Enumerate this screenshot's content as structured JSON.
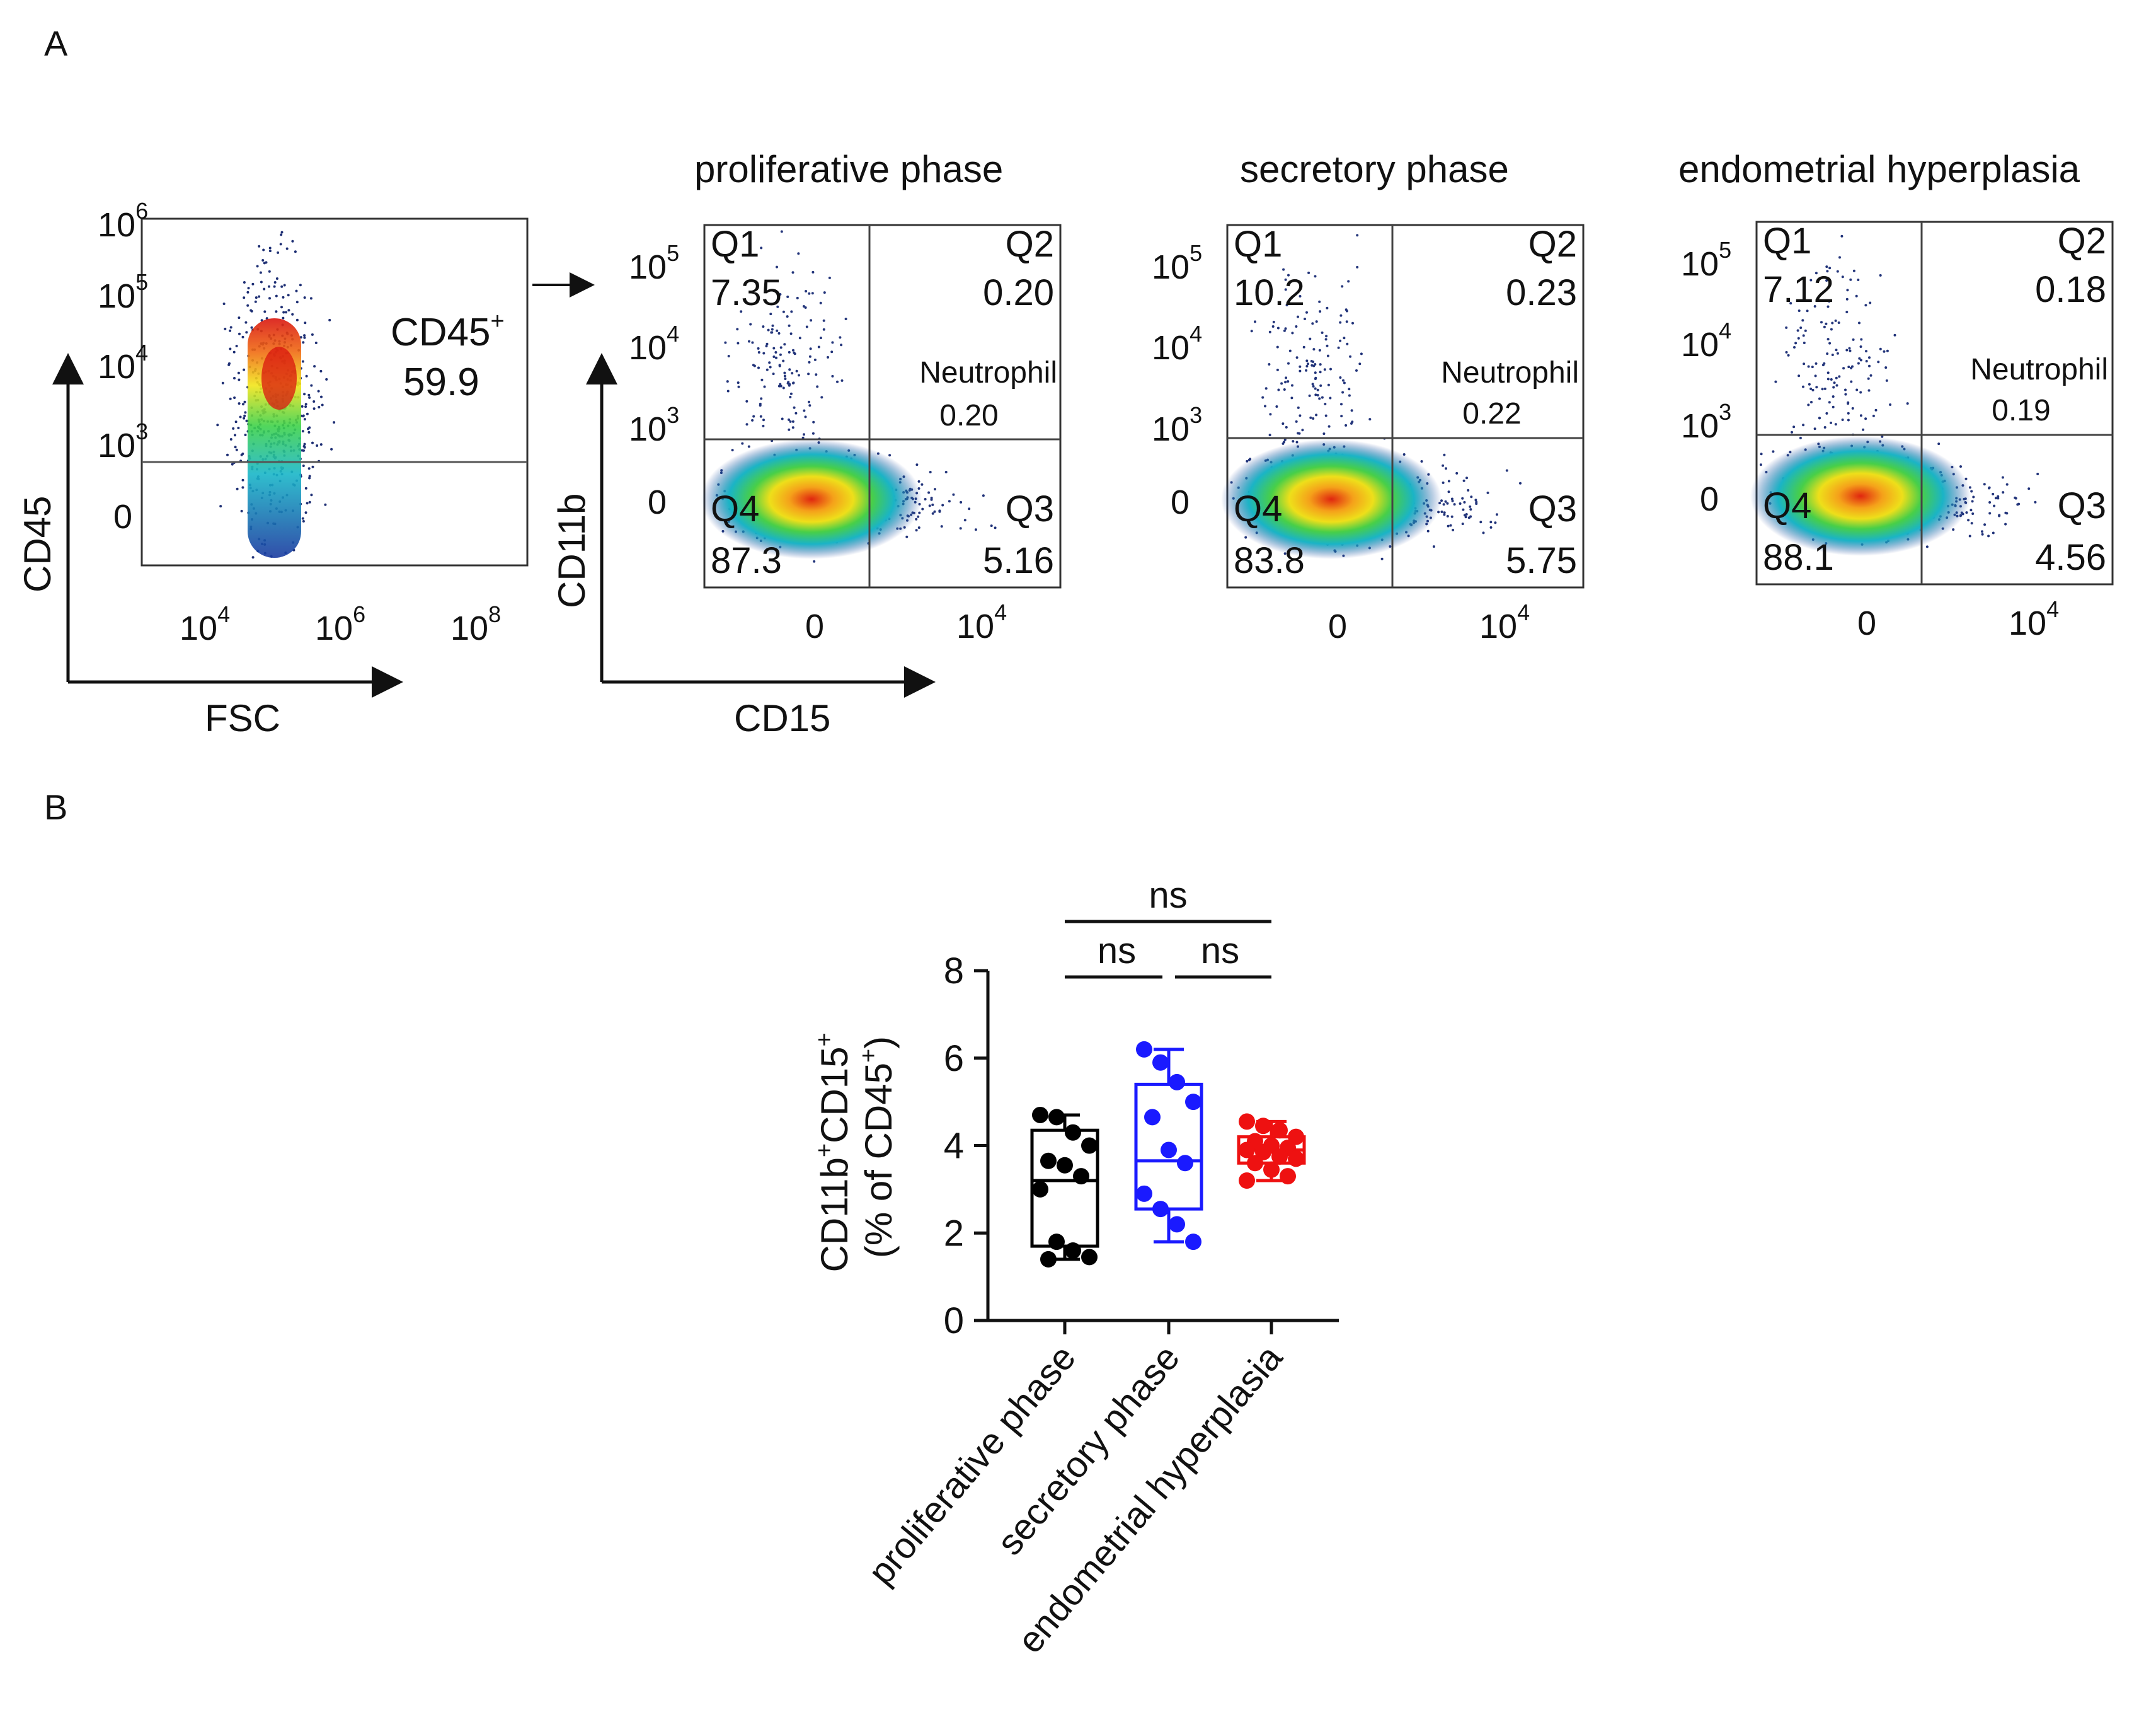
{
  "panel_a": {
    "label": "A",
    "gate_plot": {
      "gate_name": "CD45",
      "gate_value": "59.9",
      "x_axis_label": "FSC",
      "y_axis_label": "CD45",
      "x_ticks": [
        "4",
        "6",
        "8"
      ],
      "y_ticks": [
        "0",
        "3",
        "4",
        "5",
        "6"
      ]
    },
    "quadrant_plots": [
      {
        "title": "proliferative phase",
        "q1": "7.35",
        "q2": "0.20",
        "q3": "5.16",
        "q4": "87.3",
        "neutrophil": "0.20"
      },
      {
        "title": "secretory phase",
        "q1": "10.2",
        "q2": "0.23",
        "q3": "5.75",
        "q4": "83.8",
        "neutrophil": "0.22"
      },
      {
        "title": "endometrial hyperplasia",
        "q1": "7.12",
        "q2": "0.18",
        "q3": "4.56",
        "q4": "88.1",
        "neutrophil": "0.19"
      }
    ],
    "quadrant_labels": {
      "q1": "Q1",
      "q2": "Q2",
      "q3": "Q3",
      "q4": "Q4",
      "neutrophil": "Neutrophil"
    },
    "quadrant_axes": {
      "x_label": "CD15",
      "y_label": "CD11b",
      "x_ticks": [
        "0",
        "4"
      ],
      "y_ticks": [
        "0",
        "3",
        "4",
        "5"
      ]
    },
    "log_base": "10",
    "superscript_plus": "+"
  },
  "panel_b": {
    "label": "B",
    "y_label_line1": "CD11b",
    "y_label_line1b": "CD15",
    "y_label_line2a": "(% of CD45",
    "y_label_line2b": ")",
    "significance": [
      "ns",
      "ns",
      "ns"
    ],
    "colors": {
      "proliferative": "#000000",
      "secretory": "#1a1aff",
      "hyperplasia": "#ee1111"
    }
  },
  "chart_data": {
    "type": "box",
    "title": "",
    "ylabel": "CD11b+CD15+ (% of CD45+)",
    "ylim": [
      0,
      8
    ],
    "yticks": [
      0,
      2,
      4,
      6,
      8
    ],
    "categories": [
      "proliferative phase",
      "secretory phase",
      "endometrial hyperplasia"
    ],
    "series": [
      {
        "name": "proliferative phase",
        "min": 1.4,
        "q1": 1.7,
        "median": 3.2,
        "q3": 4.35,
        "max": 4.7,
        "points": [
          4.7,
          4.65,
          4.3,
          4.0,
          3.65,
          3.55,
          3.3,
          3.0,
          1.8,
          1.6,
          1.45,
          1.4
        ]
      },
      {
        "name": "secretory phase",
        "min": 1.8,
        "q1": 2.55,
        "median": 3.65,
        "q3": 5.4,
        "max": 6.2,
        "points": [
          6.2,
          5.9,
          5.45,
          5.0,
          4.65,
          3.9,
          3.6,
          2.9,
          2.55,
          2.2,
          1.8
        ]
      },
      {
        "name": "endometrial hyperplasia",
        "min": 3.2,
        "q1": 3.6,
        "median": 3.9,
        "q3": 4.2,
        "max": 4.55,
        "points": [
          4.55,
          4.45,
          4.35,
          4.2,
          4.1,
          4.0,
          3.95,
          3.9,
          3.85,
          3.75,
          3.7,
          3.6,
          3.45,
          3.3,
          3.2
        ]
      }
    ],
    "comparisons": [
      {
        "groups": [
          "proliferative phase",
          "endometrial hyperplasia"
        ],
        "label": "ns"
      },
      {
        "groups": [
          "proliferative phase",
          "secretory phase"
        ],
        "label": "ns"
      },
      {
        "groups": [
          "secretory phase",
          "endometrial hyperplasia"
        ],
        "label": "ns"
      }
    ]
  }
}
